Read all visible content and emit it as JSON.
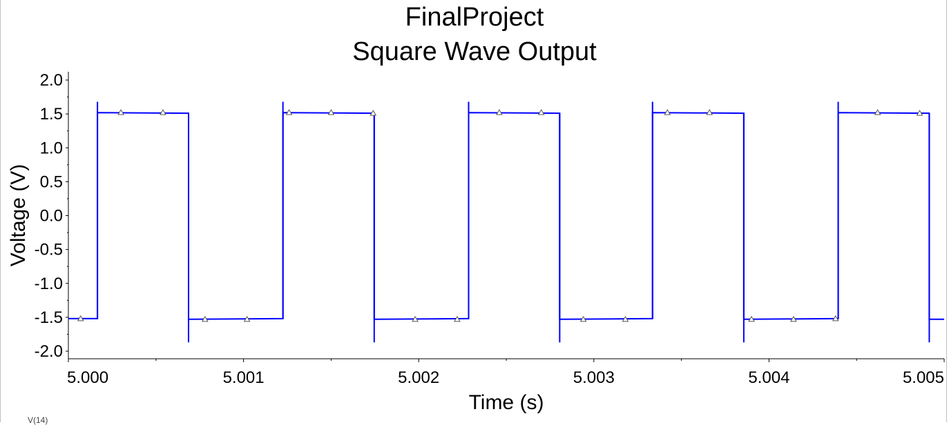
{
  "window": {
    "title_line1": "FinalProject",
    "title_line2": "Square Wave Output",
    "trace_label": "V(14)"
  },
  "chart_data": {
    "type": "line",
    "title": "FinalProject Square Wave Output",
    "xlabel": "Time (s)",
    "ylabel": "Voltage (V)",
    "xlim": [
      5.0,
      5.005
    ],
    "ylim": [
      -2.0,
      2.0
    ],
    "x_ticks": [
      "5.000",
      "5.001",
      "5.002",
      "5.003",
      "5.004",
      "5.005"
    ],
    "y_ticks": [
      "2.0",
      "1.5",
      "1.0",
      "0.5",
      "0.0",
      "-0.5",
      "-1.0",
      "-1.5",
      "-2.0"
    ],
    "grid": false,
    "line_color": "#0000ff",
    "marker_color": "#555555",
    "series": [
      {
        "x": [
          5.0,
          5.000166,
          5.000166,
          5.000686,
          5.000686,
          5.001225,
          5.001225,
          5.001746,
          5.001746,
          5.002285,
          5.002285,
          5.002805,
          5.002805,
          5.003335,
          5.003335,
          5.003856,
          5.003856,
          5.004395,
          5.004395,
          5.004915,
          5.004915,
          5.005
        ],
        "y": [
          -1.52,
          -1.52,
          1.52,
          1.51,
          -1.53,
          -1.52,
          1.52,
          1.51,
          -1.53,
          -1.52,
          1.52,
          1.51,
          -1.53,
          -1.52,
          1.52,
          1.51,
          -1.53,
          -1.52,
          1.52,
          1.51,
          -1.53,
          -1.53
        ]
      }
    ],
    "edges": [
      {
        "x": 5.000166,
        "y_from": -1.52,
        "y_to": 1.68
      },
      {
        "x": 5.000686,
        "y_from": 1.51,
        "y_to": -1.87
      },
      {
        "x": 5.001225,
        "y_from": -1.52,
        "y_to": 1.68
      },
      {
        "x": 5.001746,
        "y_from": 1.51,
        "y_to": -1.87
      },
      {
        "x": 5.002285,
        "y_from": -1.52,
        "y_to": 1.68
      },
      {
        "x": 5.002805,
        "y_from": 1.51,
        "y_to": -1.87
      },
      {
        "x": 5.003335,
        "y_from": -1.52,
        "y_to": 1.68
      },
      {
        "x": 5.003856,
        "y_from": 1.51,
        "y_to": -1.87
      },
      {
        "x": 5.004395,
        "y_from": -1.52,
        "y_to": 1.68
      },
      {
        "x": 5.004915,
        "y_from": 1.51,
        "y_to": -1.87
      }
    ],
    "markers": [
      {
        "x": 5.00007,
        "y": -1.52
      },
      {
        "x": 5.0003,
        "y": 1.52
      },
      {
        "x": 5.00054,
        "y": 1.52
      },
      {
        "x": 5.00078,
        "y": -1.53
      },
      {
        "x": 5.00102,
        "y": -1.53
      },
      {
        "x": 5.00126,
        "y": 1.52
      },
      {
        "x": 5.0015,
        "y": 1.52
      },
      {
        "x": 5.00174,
        "y": 1.51
      },
      {
        "x": 5.00198,
        "y": -1.53
      },
      {
        "x": 5.00222,
        "y": -1.53
      },
      {
        "x": 5.00246,
        "y": 1.52
      },
      {
        "x": 5.0027,
        "y": 1.52
      },
      {
        "x": 5.00294,
        "y": -1.53
      },
      {
        "x": 5.00318,
        "y": -1.53
      },
      {
        "x": 5.00342,
        "y": 1.52
      },
      {
        "x": 5.00366,
        "y": 1.52
      },
      {
        "x": 5.0039,
        "y": -1.53
      },
      {
        "x": 5.00414,
        "y": -1.53
      },
      {
        "x": 5.00438,
        "y": -1.52
      },
      {
        "x": 5.00462,
        "y": 1.52
      },
      {
        "x": 5.00486,
        "y": 1.51
      }
    ]
  }
}
